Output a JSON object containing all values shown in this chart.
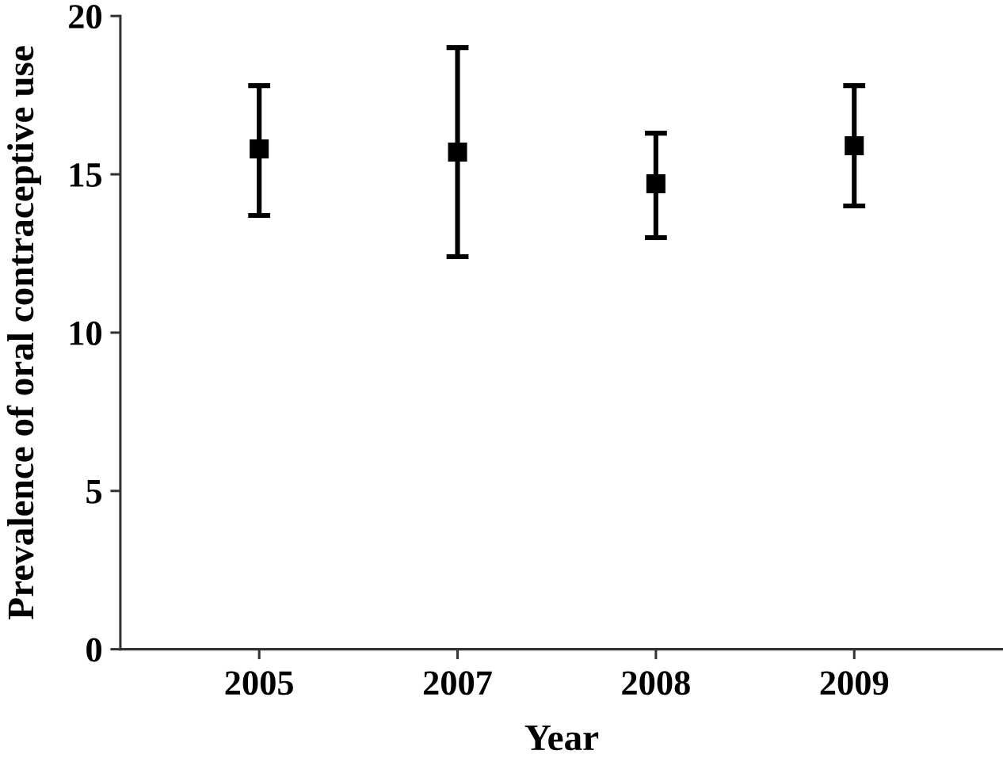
{
  "chart_data": {
    "type": "scatter",
    "xlabel": "Year",
    "ylabel": "Prevalence of oral contraceptive use",
    "categories": [
      "2005",
      "2007",
      "2008",
      "2009"
    ],
    "values": [
      15.8,
      15.7,
      14.7,
      15.9
    ],
    "color": "#000000",
    "errors": [
      [
        13.7,
        17.8
      ],
      [
        12.4,
        19.0
      ],
      [
        13.0,
        16.3
      ],
      [
        14.0,
        17.8
      ]
    ],
    "ylim": [
      0,
      20
    ],
    "yticks": [
      0,
      5,
      10,
      15,
      20
    ],
    "marker": "square"
  }
}
